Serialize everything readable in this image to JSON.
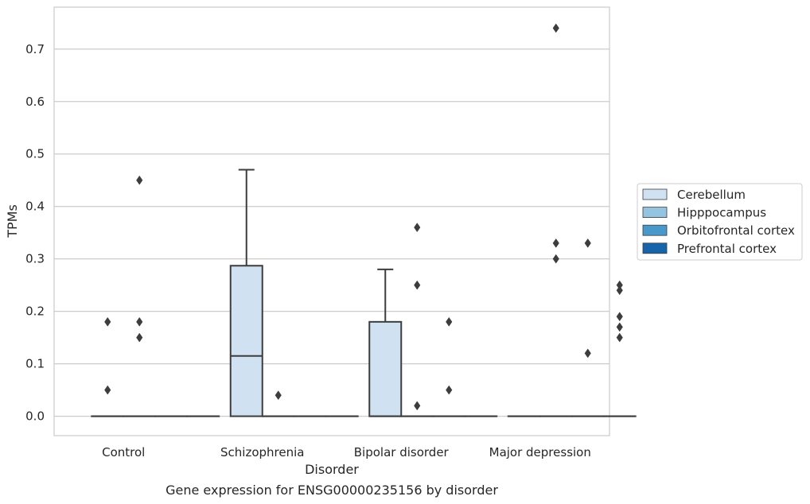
{
  "chart_data": {
    "type": "box",
    "title": "",
    "caption": "Gene expression for ENSG00000235156 by disorder",
    "xlabel": "Disorder",
    "ylabel": "TPMs",
    "ylim": [
      -0.037,
      0.78
    ],
    "yticks": [
      "0.0",
      "0.1",
      "0.2",
      "0.3",
      "0.4",
      "0.5",
      "0.6",
      "0.7"
    ],
    "categories": [
      "Control",
      "Schizophrenia",
      "Bipolar disorder",
      "Major depression"
    ],
    "grid": "horizontal",
    "legend_position": "right",
    "series": [
      {
        "name": "Cerebellum",
        "color": "#d0e1f2"
      },
      {
        "name": "Hipppocampus",
        "color": "#94c4df"
      },
      {
        "name": "Orbitofrontal cortex",
        "color": "#4a98c9"
      },
      {
        "name": "Prefrontal cortex",
        "color": "#1764ab"
      }
    ],
    "boxes": [
      {
        "category": 0,
        "series": 0,
        "q1": 0,
        "median": 0,
        "q3": 0,
        "whisker_low": 0,
        "whisker_high": 0,
        "outliers": [
          0.18,
          0.05
        ]
      },
      {
        "category": 0,
        "series": 1,
        "q1": 0,
        "median": 0,
        "q3": 0,
        "whisker_low": 0,
        "whisker_high": 0,
        "outliers": [
          0.45,
          0.18,
          0.15
        ]
      },
      {
        "category": 0,
        "series": 2,
        "q1": 0,
        "median": 0,
        "q3": 0,
        "whisker_low": 0,
        "whisker_high": 0,
        "outliers": []
      },
      {
        "category": 0,
        "series": 3,
        "q1": 0,
        "median": 0,
        "q3": 0,
        "whisker_low": 0,
        "whisker_high": 0,
        "outliers": []
      },
      {
        "category": 1,
        "series": 0,
        "q1": 0,
        "median": 0.115,
        "q3": 0.287,
        "whisker_low": 0,
        "whisker_high": 0.47,
        "outliers": []
      },
      {
        "category": 1,
        "series": 1,
        "q1": 0,
        "median": 0,
        "q3": 0,
        "whisker_low": 0,
        "whisker_high": 0,
        "outliers": [
          0.04
        ]
      },
      {
        "category": 1,
        "series": 2,
        "q1": 0,
        "median": 0,
        "q3": 0,
        "whisker_low": 0,
        "whisker_high": 0,
        "outliers": []
      },
      {
        "category": 1,
        "series": 3,
        "q1": 0,
        "median": 0,
        "q3": 0,
        "whisker_low": 0,
        "whisker_high": 0,
        "outliers": []
      },
      {
        "category": 2,
        "series": 0,
        "q1": 0,
        "median": 0,
        "q3": 0.18,
        "whisker_low": 0,
        "whisker_high": 0.28,
        "outliers": []
      },
      {
        "category": 2,
        "series": 1,
        "q1": 0,
        "median": 0,
        "q3": 0,
        "whisker_low": 0,
        "whisker_high": 0,
        "outliers": [
          0.36,
          0.25,
          0.02
        ]
      },
      {
        "category": 2,
        "series": 2,
        "q1": 0,
        "median": 0,
        "q3": 0,
        "whisker_low": 0,
        "whisker_high": 0,
        "outliers": [
          0.18,
          0.05
        ]
      },
      {
        "category": 2,
        "series": 3,
        "q1": 0,
        "median": 0,
        "q3": 0,
        "whisker_low": 0,
        "whisker_high": 0,
        "outliers": []
      },
      {
        "category": 3,
        "series": 0,
        "q1": 0,
        "median": 0,
        "q3": 0,
        "whisker_low": 0,
        "whisker_high": 0,
        "outliers": []
      },
      {
        "category": 3,
        "series": 1,
        "q1": 0,
        "median": 0,
        "q3": 0,
        "whisker_low": 0,
        "whisker_high": 0,
        "outliers": [
          0.74,
          0.33,
          0.3
        ]
      },
      {
        "category": 3,
        "series": 2,
        "q1": 0,
        "median": 0,
        "q3": 0,
        "whisker_low": 0,
        "whisker_high": 0,
        "outliers": [
          0.33,
          0.12
        ]
      },
      {
        "category": 3,
        "series": 3,
        "q1": 0,
        "median": 0,
        "q3": 0,
        "whisker_low": 0,
        "whisker_high": 0,
        "outliers": [
          0.25,
          0.24,
          0.19,
          0.17,
          0.15
        ]
      }
    ]
  }
}
